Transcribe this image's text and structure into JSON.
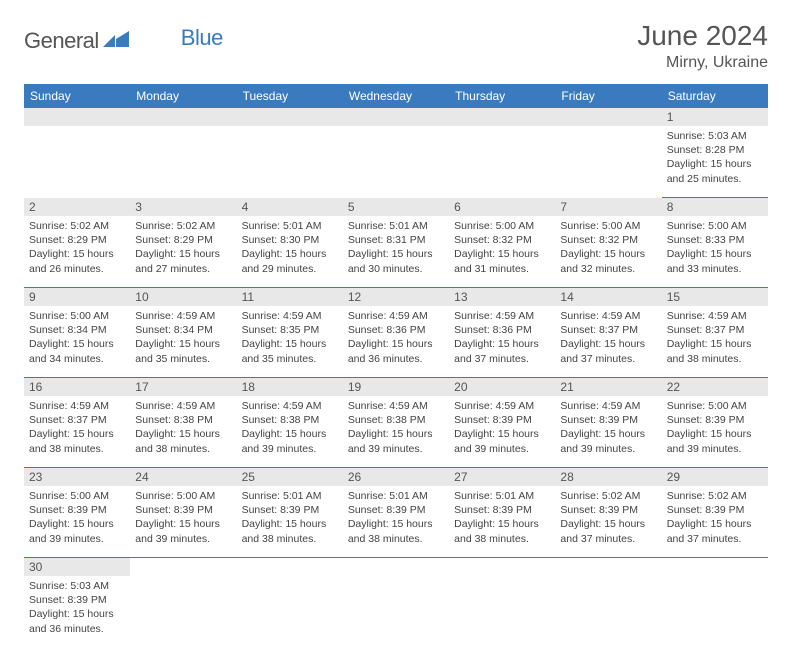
{
  "logo": {
    "text1": "General",
    "text2": "Blue",
    "color1": "#555555",
    "color2": "#3a7bbf"
  },
  "title": "June 2024",
  "location": "Mirny, Ukraine",
  "header_bg": "#3a7bbf",
  "daynum_bg": "#e8e8e8",
  "cell_border": "#3a7bbf",
  "weekdays": [
    "Sunday",
    "Monday",
    "Tuesday",
    "Wednesday",
    "Thursday",
    "Friday",
    "Saturday"
  ],
  "first_weekday_index": 6,
  "days": [
    {
      "n": 1,
      "sunrise": "5:03 AM",
      "sunset": "8:28 PM",
      "daylight": "15 hours and 25 minutes."
    },
    {
      "n": 2,
      "sunrise": "5:02 AM",
      "sunset": "8:29 PM",
      "daylight": "15 hours and 26 minutes."
    },
    {
      "n": 3,
      "sunrise": "5:02 AM",
      "sunset": "8:29 PM",
      "daylight": "15 hours and 27 minutes."
    },
    {
      "n": 4,
      "sunrise": "5:01 AM",
      "sunset": "8:30 PM",
      "daylight": "15 hours and 29 minutes."
    },
    {
      "n": 5,
      "sunrise": "5:01 AM",
      "sunset": "8:31 PM",
      "daylight": "15 hours and 30 minutes."
    },
    {
      "n": 6,
      "sunrise": "5:00 AM",
      "sunset": "8:32 PM",
      "daylight": "15 hours and 31 minutes."
    },
    {
      "n": 7,
      "sunrise": "5:00 AM",
      "sunset": "8:32 PM",
      "daylight": "15 hours and 32 minutes."
    },
    {
      "n": 8,
      "sunrise": "5:00 AM",
      "sunset": "8:33 PM",
      "daylight": "15 hours and 33 minutes."
    },
    {
      "n": 9,
      "sunrise": "5:00 AM",
      "sunset": "8:34 PM",
      "daylight": "15 hours and 34 minutes."
    },
    {
      "n": 10,
      "sunrise": "4:59 AM",
      "sunset": "8:34 PM",
      "daylight": "15 hours and 35 minutes."
    },
    {
      "n": 11,
      "sunrise": "4:59 AM",
      "sunset": "8:35 PM",
      "daylight": "15 hours and 35 minutes."
    },
    {
      "n": 12,
      "sunrise": "4:59 AM",
      "sunset": "8:36 PM",
      "daylight": "15 hours and 36 minutes."
    },
    {
      "n": 13,
      "sunrise": "4:59 AM",
      "sunset": "8:36 PM",
      "daylight": "15 hours and 37 minutes."
    },
    {
      "n": 14,
      "sunrise": "4:59 AM",
      "sunset": "8:37 PM",
      "daylight": "15 hours and 37 minutes."
    },
    {
      "n": 15,
      "sunrise": "4:59 AM",
      "sunset": "8:37 PM",
      "daylight": "15 hours and 38 minutes."
    },
    {
      "n": 16,
      "sunrise": "4:59 AM",
      "sunset": "8:37 PM",
      "daylight": "15 hours and 38 minutes."
    },
    {
      "n": 17,
      "sunrise": "4:59 AM",
      "sunset": "8:38 PM",
      "daylight": "15 hours and 38 minutes."
    },
    {
      "n": 18,
      "sunrise": "4:59 AM",
      "sunset": "8:38 PM",
      "daylight": "15 hours and 39 minutes."
    },
    {
      "n": 19,
      "sunrise": "4:59 AM",
      "sunset": "8:38 PM",
      "daylight": "15 hours and 39 minutes."
    },
    {
      "n": 20,
      "sunrise": "4:59 AM",
      "sunset": "8:39 PM",
      "daylight": "15 hours and 39 minutes."
    },
    {
      "n": 21,
      "sunrise": "4:59 AM",
      "sunset": "8:39 PM",
      "daylight": "15 hours and 39 minutes."
    },
    {
      "n": 22,
      "sunrise": "5:00 AM",
      "sunset": "8:39 PM",
      "daylight": "15 hours and 39 minutes."
    },
    {
      "n": 23,
      "sunrise": "5:00 AM",
      "sunset": "8:39 PM",
      "daylight": "15 hours and 39 minutes."
    },
    {
      "n": 24,
      "sunrise": "5:00 AM",
      "sunset": "8:39 PM",
      "daylight": "15 hours and 39 minutes."
    },
    {
      "n": 25,
      "sunrise": "5:01 AM",
      "sunset": "8:39 PM",
      "daylight": "15 hours and 38 minutes."
    },
    {
      "n": 26,
      "sunrise": "5:01 AM",
      "sunset": "8:39 PM",
      "daylight": "15 hours and 38 minutes."
    },
    {
      "n": 27,
      "sunrise": "5:01 AM",
      "sunset": "8:39 PM",
      "daylight": "15 hours and 38 minutes."
    },
    {
      "n": 28,
      "sunrise": "5:02 AM",
      "sunset": "8:39 PM",
      "daylight": "15 hours and 37 minutes."
    },
    {
      "n": 29,
      "sunrise": "5:02 AM",
      "sunset": "8:39 PM",
      "daylight": "15 hours and 37 minutes."
    },
    {
      "n": 30,
      "sunrise": "5:03 AM",
      "sunset": "8:39 PM",
      "daylight": "15 hours and 36 minutes."
    }
  ],
  "labels": {
    "sunrise": "Sunrise:",
    "sunset": "Sunset:",
    "daylight": "Daylight:"
  }
}
